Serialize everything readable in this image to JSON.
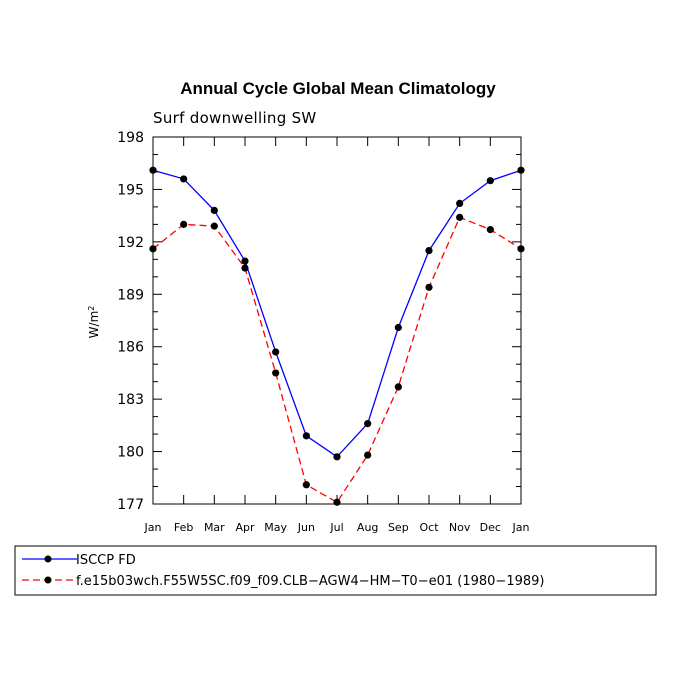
{
  "chart_data": {
    "type": "line",
    "title": "Annual Cycle Global Mean Climatology",
    "subtitle": "Surf downwelling SW",
    "xlabel": "",
    "ylabel": "W/m",
    "ylabel_superscript": "2",
    "categories": [
      "Jan",
      "Feb",
      "Mar",
      "Apr",
      "May",
      "Jun",
      "Jul",
      "Aug",
      "Sep",
      "Oct",
      "Nov",
      "Dec",
      "Jan"
    ],
    "ylim": [
      177,
      198
    ],
    "yticks": [
      "177",
      "180",
      "183",
      "186",
      "189",
      "192",
      "195",
      "198"
    ],
    "grid": false,
    "legend_position": "bottom",
    "series": [
      {
        "name": "ISCCP FD",
        "color": "#0000ff",
        "dash": "solid",
        "values": [
          196.1,
          195.6,
          193.8,
          190.9,
          185.7,
          180.9,
          179.7,
          181.6,
          187.1,
          191.5,
          194.2,
          195.5,
          196.1
        ]
      },
      {
        "name": "f.e15b03wch.F55W5SC.f09_f09.CLB−AGW4−HM−T0−e01 (1980−1989)",
        "color": "#ff0000",
        "dash": "dashed",
        "values": [
          191.6,
          193.0,
          192.9,
          190.5,
          184.5,
          178.1,
          177.1,
          179.8,
          183.7,
          189.4,
          193.4,
          192.7,
          191.6
        ]
      }
    ]
  }
}
